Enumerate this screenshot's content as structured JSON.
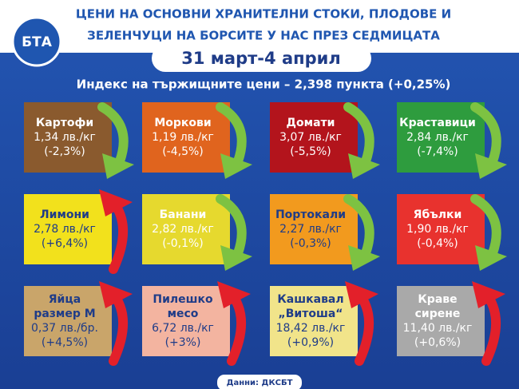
{
  "header": {
    "title_lines": [
      "ЦЕНИ НА ОСНОВНИ ХРАНИТЕЛНИ СТОКИ, ПЛОДОВЕ И",
      "ЗЕЛЕНЧУЦИ НА БОРСИТЕ У НАС ПРЕЗ СЕДМИЦАТА"
    ],
    "logo": "БТА",
    "period": "31 март-4 април",
    "subtitle": "Индекс на тържищните цени – 2,398 пункта (+0,25%)"
  },
  "items": [
    {
      "name": [
        "Картофи"
      ],
      "price": "1,34 лв./кг",
      "change": "(-2,3%)",
      "arrow": "down",
      "color": "#8a5a2e",
      "text_color": "#ffffff"
    },
    {
      "name": [
        "Моркови"
      ],
      "price": "1,19 лв./кг",
      "change": "(-4,5%)",
      "arrow": "down",
      "color": "#e0641e",
      "text_color": "#ffffff"
    },
    {
      "name": [
        "Домати"
      ],
      "price": "3,07 лв./кг",
      "change": "(-5,5%)",
      "arrow": "down",
      "color": "#b3141c",
      "text_color": "#ffffff"
    },
    {
      "name": [
        "Краставици"
      ],
      "price": "2,84 лв./кг",
      "change": "(-7,4%)",
      "arrow": "down",
      "color": "#2e9c3e",
      "text_color": "#ffffff"
    },
    {
      "name": [
        "Лимони"
      ],
      "price": "2,78 лв./кг",
      "change": "(+6,4%)",
      "arrow": "up",
      "color": "#f2e11c",
      "text_color": "#1f3c88"
    },
    {
      "name": [
        "Банани"
      ],
      "price": "2,82 лв./кг",
      "change": "(-0,1%)",
      "arrow": "down",
      "color": "#e6d92e",
      "text_color": "#ffffff"
    },
    {
      "name": [
        "Портокали"
      ],
      "price": "2,27 лв./кг",
      "change": "(-0,3%)",
      "arrow": "down",
      "color": "#f29a1e",
      "text_color": "#1f3c88"
    },
    {
      "name": [
        "Ябълки"
      ],
      "price": "1,90 лв./кг",
      "change": "(-0,4%)",
      "arrow": "down",
      "color": "#e8322e",
      "text_color": "#ffffff"
    },
    {
      "name": [
        "Яйца",
        "размер М"
      ],
      "price": "0,37 лв./бр.",
      "change": "(+4,5%)",
      "arrow": "up",
      "color": "#c9a56a",
      "text_color": "#1f3c88"
    },
    {
      "name": [
        "Пилешко",
        "месо"
      ],
      "price": "6,72 лв./кг",
      "change": "(+3%)",
      "arrow": "up",
      "color": "#f3b4a0",
      "text_color": "#1f3c88"
    },
    {
      "name": [
        "Кашкавал",
        "„Витоша“"
      ],
      "price": "18,42 лв./кг",
      "change": "(+0,9%)",
      "arrow": "up",
      "color": "#f1e48a",
      "text_color": "#1f3c88"
    },
    {
      "name": [
        "Краве",
        "сирене"
      ],
      "price": "11,40 лв./кг",
      "change": "(+0,6%)",
      "arrow": "up",
      "color": "#a9a9a9",
      "text_color": "#ffffff"
    }
  ],
  "source": "Данни: ДКСБТ"
}
